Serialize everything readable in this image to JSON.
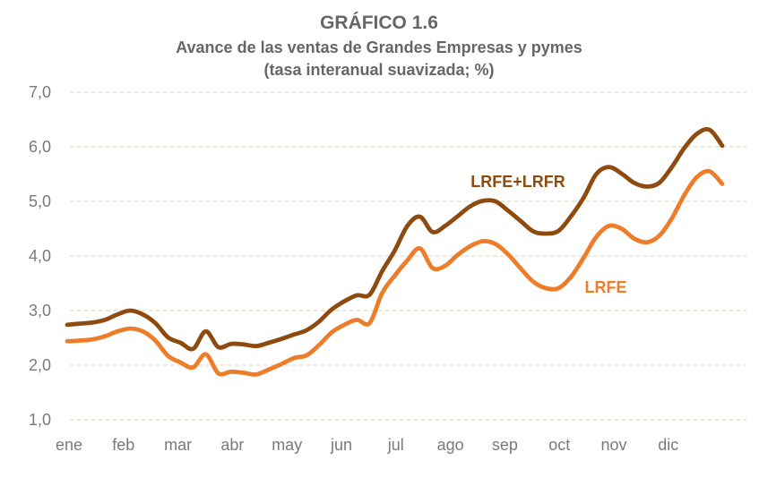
{
  "page": {
    "background": "#FFFFFF"
  },
  "chart": {
    "title": "GRÁFICO 1.6",
    "subtitle_line1": "Avance de las ventas de Grandes Empresas y pymes",
    "subtitle_line2": "(tasa interanual suavizada; %)"
  },
  "colors": {
    "grid_line": "#E4DFCB",
    "axis_label": "#7A7A7A",
    "title_text": "#666666",
    "series_dark_brown": "#8E4B10",
    "series_orange": "#ED7D2B",
    "background": "#FFFFFF"
  },
  "chart_data": {
    "type": "line",
    "title": "GRÁFICO 1.6",
    "subtitle": "Avance de las ventas de Grandes Empresas y pymes (tasa interanual suavizada; %)",
    "categories": [
      "ene",
      "feb",
      "mar",
      "abr",
      "may",
      "jun",
      "jul",
      "ago",
      "sep",
      "oct",
      "nov",
      "dic"
    ],
    "x_sampling": "53 weekly points spanning ene to dic",
    "ylim": [
      1.0,
      7.0
    ],
    "grid": "horizontal dashed lines at each y tick",
    "legend_position": "inline labels next to lines",
    "y_ticks": [
      {
        "value": 1,
        "label": "1,0"
      },
      {
        "value": 2,
        "label": "2,0"
      },
      {
        "value": 3,
        "label": "3,0"
      },
      {
        "value": 4,
        "label": "4,0"
      },
      {
        "value": 5,
        "label": "5,0"
      },
      {
        "value": 6,
        "label": "6,0"
      },
      {
        "value": 7,
        "label": "7,0"
      }
    ],
    "series": [
      {
        "name": "LRFE+LRFR",
        "color": "#8E4B10",
        "values": [
          2.74,
          2.76,
          2.78,
          2.83,
          2.93,
          3.0,
          2.93,
          2.77,
          2.51,
          2.41,
          2.3,
          2.62,
          2.33,
          2.39,
          2.38,
          2.35,
          2.41,
          2.48,
          2.56,
          2.64,
          2.8,
          3.02,
          3.17,
          3.28,
          3.29,
          3.72,
          4.1,
          4.55,
          4.72,
          4.44,
          4.55,
          4.73,
          4.91,
          5.01,
          5.0,
          4.83,
          4.64,
          4.45,
          4.41,
          4.46,
          4.73,
          5.07,
          5.5,
          5.63,
          5.51,
          5.34,
          5.27,
          5.34,
          5.63,
          5.98,
          6.24,
          6.31,
          6.02
        ]
      },
      {
        "name": "LRFE",
        "color": "#ED7D2B",
        "values": [
          2.44,
          2.45,
          2.47,
          2.53,
          2.62,
          2.67,
          2.62,
          2.45,
          2.17,
          2.05,
          1.96,
          2.2,
          1.85,
          1.88,
          1.86,
          1.83,
          1.92,
          2.02,
          2.13,
          2.18,
          2.37,
          2.6,
          2.74,
          2.83,
          2.77,
          3.32,
          3.64,
          3.92,
          4.14,
          3.78,
          3.82,
          4.02,
          4.18,
          4.27,
          4.22,
          4.03,
          3.77,
          3.53,
          3.41,
          3.41,
          3.62,
          3.97,
          4.35,
          4.55,
          4.5,
          4.32,
          4.25,
          4.37,
          4.69,
          5.12,
          5.45,
          5.55,
          5.32
        ]
      }
    ]
  }
}
